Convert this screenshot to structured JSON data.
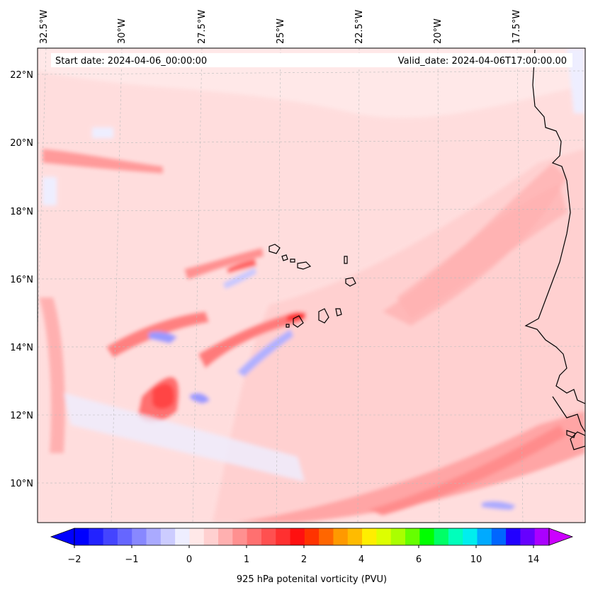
{
  "header": {
    "start_date": "Start date: 2024-04-06_00:00:00",
    "valid_date": "Valid_date: 2024-04-06T17:00:00.00"
  },
  "longitude_labels": [
    "32.5°W",
    "30°W",
    "27.5°W",
    "25°W",
    "22.5°W",
    "20°W",
    "17.5°W"
  ],
  "latitude_labels": [
    "22°N",
    "20°N",
    "18°N",
    "16°N",
    "14°N",
    "12°N",
    "10°N"
  ],
  "colorbar": {
    "label": "925 hPa potenital vorticity (PVU)",
    "tick_labels": [
      "−2",
      "−1",
      "0",
      "1",
      "2",
      "4",
      "6",
      "10",
      "14"
    ],
    "colors": [
      "#0000ff",
      "#2222ff",
      "#4444ff",
      "#6666ff",
      "#8888ff",
      "#aaaaff",
      "#ccccff",
      "#eeeeff",
      "#ffe8e8",
      "#ffd0d0",
      "#ffb0b0",
      "#ff9090",
      "#ff7070",
      "#ff5050",
      "#ff3030",
      "#ff1010",
      "#ff3300",
      "#ff6600",
      "#ff9900",
      "#ffbb00",
      "#ffee00",
      "#ddff00",
      "#aaff00",
      "#66ff00",
      "#00ff00",
      "#00ff66",
      "#00ffbb",
      "#00eeee",
      "#00aaff",
      "#0066ff",
      "#2200ff",
      "#6600ff",
      "#aa00ff"
    ],
    "under_color": "#0000ff",
    "over_color": "#cc00ff"
  },
  "map": {
    "background_color": "#ffe8e8",
    "coastline_color": "#000000"
  }
}
